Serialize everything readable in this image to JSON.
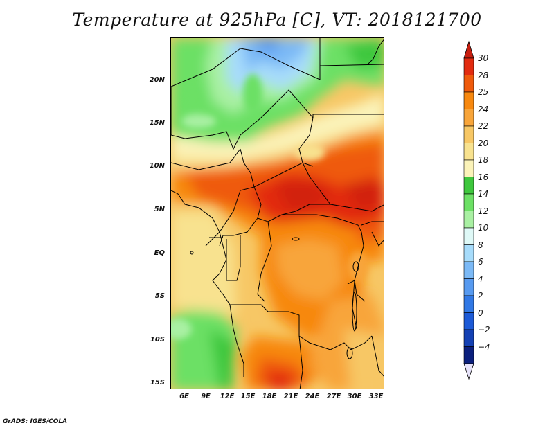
{
  "figure": {
    "title": "Temperature at 925hPa [C], VT: 2018121700",
    "credit": "GrADS: IGES/COLA"
  },
  "map_data": {
    "lon_range": [
      4,
      34
    ],
    "lat_range": [
      -16,
      24
    ],
    "lat_ticks": [
      {
        "value": 20,
        "label": "20N"
      },
      {
        "value": 15,
        "label": "15N"
      },
      {
        "value": 10,
        "label": "10N"
      },
      {
        "value": 5,
        "label": "5N"
      },
      {
        "value": 0,
        "label": "EQ"
      },
      {
        "value": -5,
        "label": "5S"
      },
      {
        "value": -10,
        "label": "10S"
      },
      {
        "value": -15,
        "label": "15S"
      }
    ],
    "lon_ticks": [
      {
        "value": 6,
        "label": "6E"
      },
      {
        "value": 9,
        "label": "9E"
      },
      {
        "value": 12,
        "label": "12E"
      },
      {
        "value": 15,
        "label": "15E"
      },
      {
        "value": 18,
        "label": "18E"
      },
      {
        "value": 21,
        "label": "21E"
      },
      {
        "value": 24,
        "label": "24E"
      },
      {
        "value": 27,
        "label": "27E"
      },
      {
        "value": 30,
        "label": "30E"
      },
      {
        "value": 33,
        "label": "33E"
      }
    ]
  },
  "colorbar": {
    "levels": [
      "30",
      "28",
      "25",
      "24",
      "22",
      "20",
      "18",
      "16",
      "14",
      "12",
      "10",
      "8",
      "6",
      "4",
      "2",
      "0",
      "-2",
      "-4"
    ],
    "colors": [
      "#e22b10",
      "#ef5a0c",
      "#f7880f",
      "#f8a53a",
      "#f7c765",
      "#f8e28f",
      "#fbf3b9",
      "#3ec73d",
      "#6ce065",
      "#a9f0a3",
      "#dff9f7",
      "#a7dcfb",
      "#7bb9f6",
      "#579af0",
      "#3178e5",
      "#1c5ad7",
      "#1441b4",
      "#0b1f7d"
    ],
    "top_color": "#c81e0f",
    "bottom_color": "#e7e3fa"
  }
}
